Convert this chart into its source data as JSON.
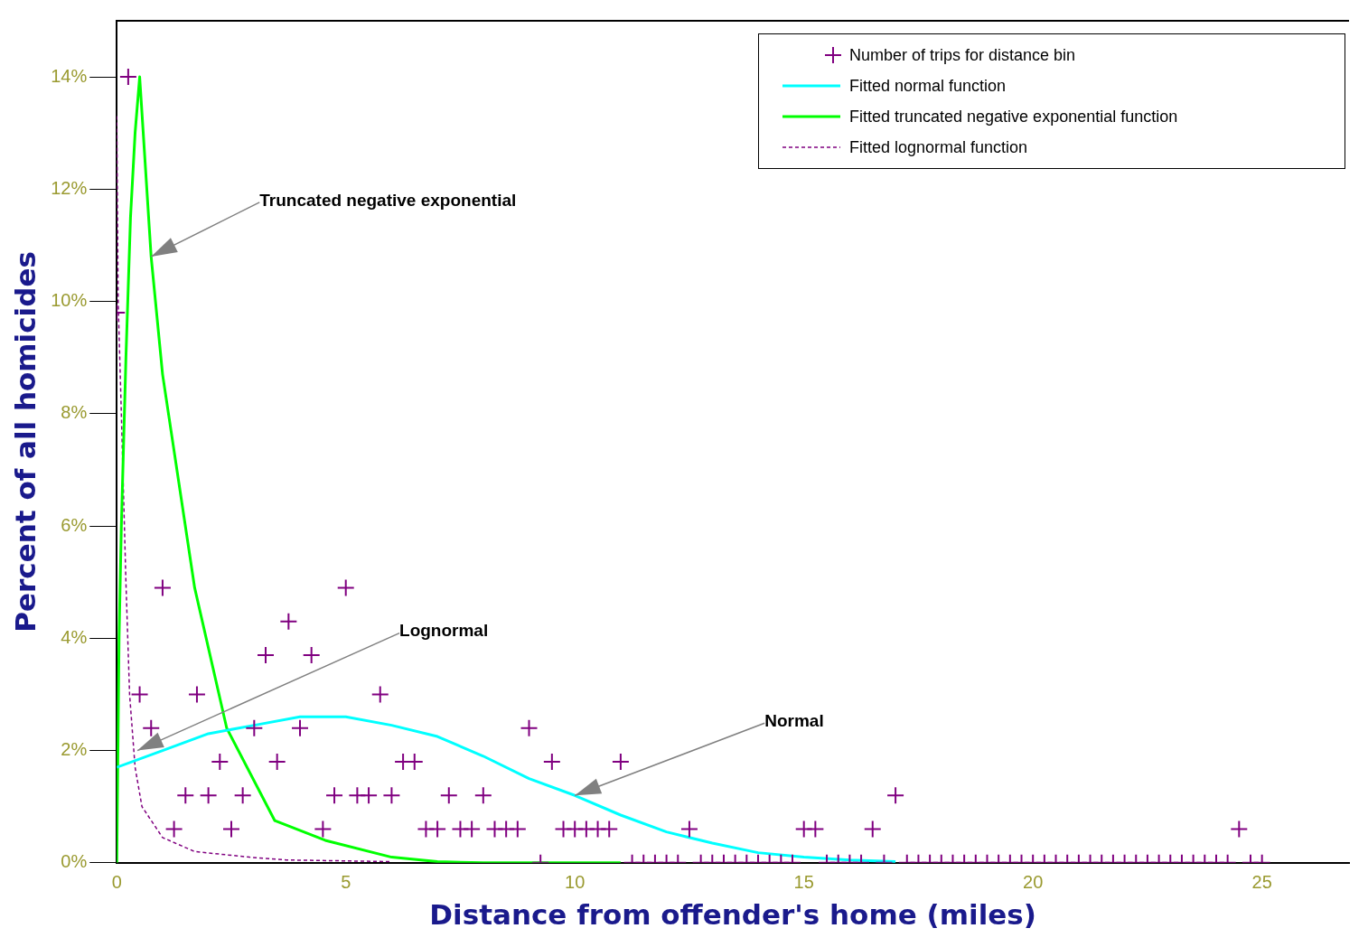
{
  "chart_data": {
    "type": "scatter",
    "xlabel": "Distance from offender's home (miles)",
    "ylabel": "Percent of all homicides",
    "xlim": [
      0,
      26.9
    ],
    "xticks": [
      0,
      5,
      10,
      15,
      20,
      25
    ],
    "ylim": [
      0,
      15
    ],
    "yticks": [
      {
        "value": 0,
        "label": "0%"
      },
      {
        "value": 2,
        "label": "2%"
      },
      {
        "value": 4,
        "label": "4%"
      },
      {
        "value": 6,
        "label": "6%"
      },
      {
        "value": 8,
        "label": "8%"
      },
      {
        "value": 10,
        "label": "10%"
      },
      {
        "value": 12,
        "label": "12%"
      },
      {
        "value": 14,
        "label": "14%"
      }
    ],
    "grid": false,
    "legend": "top right",
    "series": [
      {
        "name": "Number of trips for distance bin",
        "marker": "cross",
        "color": "#800080",
        "x": [
          0,
          0.25,
          0.5,
          0.75,
          1,
          1.25,
          1.5,
          1.75,
          2,
          2.25,
          2.5,
          2.75,
          3,
          3.25,
          3.5,
          3.75,
          4,
          4.25,
          4.5,
          4.75,
          5,
          5.25,
          5.5,
          5.75,
          6,
          6.25,
          6.5,
          6.75,
          7,
          7.25,
          7.5,
          7.75,
          8,
          8.25,
          8.5,
          8.75,
          9,
          9.25,
          9.5,
          9.75,
          10,
          10.25,
          10.5,
          10.75,
          11,
          11.25,
          11.5,
          11.75,
          12,
          12.25,
          12.5,
          12.75,
          13,
          13.25,
          13.5,
          13.75,
          14,
          14.25,
          14.5,
          14.75,
          15,
          15.25,
          15.5,
          15.75,
          16,
          16.25,
          16.5,
          16.75,
          17,
          17.25,
          17.5,
          17.75,
          18,
          18.25,
          18.5,
          18.75,
          19,
          19.25,
          19.5,
          19.75,
          20,
          20.25,
          20.5,
          20.75,
          21,
          21.25,
          21.5,
          21.75,
          22,
          22.25,
          22.5,
          22.75,
          23,
          23.25,
          23.5,
          23.75,
          24,
          24.25,
          24.5,
          24.75,
          25
        ],
        "values": [
          9.8,
          14.0,
          3.0,
          2.4,
          4.9,
          0.6,
          1.2,
          3.0,
          1.2,
          1.8,
          0.6,
          1.2,
          2.4,
          3.7,
          1.8,
          4.3,
          2.4,
          3.7,
          0.6,
          1.2,
          4.9,
          1.2,
          1.2,
          3.0,
          1.2,
          1.8,
          1.8,
          0.6,
          0.6,
          1.2,
          0.6,
          0.6,
          1.2,
          0.6,
          0.6,
          0.6,
          2.4,
          0,
          1.8,
          0.6,
          0.6,
          0.6,
          0.6,
          0.6,
          1.8,
          0,
          0,
          0,
          0,
          0,
          0.6,
          0,
          0,
          0,
          0,
          0,
          0,
          0,
          0,
          0,
          0.6,
          0.6,
          0,
          0,
          0,
          0,
          0.6,
          0,
          1.2,
          0,
          0,
          0,
          0,
          0,
          0,
          0,
          0,
          0,
          0,
          0,
          0,
          0,
          0,
          0,
          0,
          0,
          0,
          0,
          0,
          0,
          0,
          0,
          0,
          0,
          0,
          0,
          0,
          0,
          0.6,
          0,
          0
        ]
      },
      {
        "name": "Fitted normal function",
        "type": "line",
        "marker": "none",
        "line_style": "solid",
        "color": "#00ffff",
        "x": [
          0,
          1,
          2,
          3,
          4,
          5,
          6,
          7,
          8,
          9,
          10,
          11,
          12,
          13,
          14,
          15,
          16,
          17
        ],
        "values": [
          1.7,
          2.0,
          2.3,
          2.45,
          2.6,
          2.6,
          2.45,
          2.25,
          1.9,
          1.5,
          1.2,
          0.85,
          0.55,
          0.35,
          0.18,
          0.1,
          0.05,
          0.02
        ]
      },
      {
        "name": "Fitted truncated negative exponential function",
        "type": "line",
        "marker": "none",
        "line_style": "solid",
        "color": "#00ff00",
        "x": [
          0,
          0.05,
          0.1,
          0.2,
          0.3,
          0.4,
          0.5,
          0.75,
          1,
          1.7,
          2.4,
          3.45,
          4.55,
          6,
          7,
          8,
          11
        ],
        "values": [
          0,
          4,
          6,
          9,
          11.5,
          13,
          14,
          10.8,
          8.7,
          4.9,
          2.4,
          0.75,
          0.4,
          0.1,
          0.02,
          0,
          0
        ]
      },
      {
        "name": "Fitted lognormal function",
        "type": "line",
        "marker": "none",
        "line_style": "dashed",
        "color": "#800080",
        "x": [
          0,
          0.03,
          0.1,
          0.2,
          0.28,
          0.4,
          0.55,
          1,
          1.7,
          2.9,
          3.7,
          6
        ],
        "values": [
          13.3,
          10,
          8,
          5,
          3,
          1.7,
          1,
          0.45,
          0.2,
          0.1,
          0.05,
          0.02
        ]
      }
    ],
    "annotations": [
      {
        "text": "Truncated negative exponential",
        "x": 0.75,
        "y": 10.8
      },
      {
        "text": "Lognormal",
        "x": 0.45,
        "y": 2.0
      },
      {
        "text": "Normal",
        "x": 10,
        "y": 1.2
      }
    ]
  }
}
